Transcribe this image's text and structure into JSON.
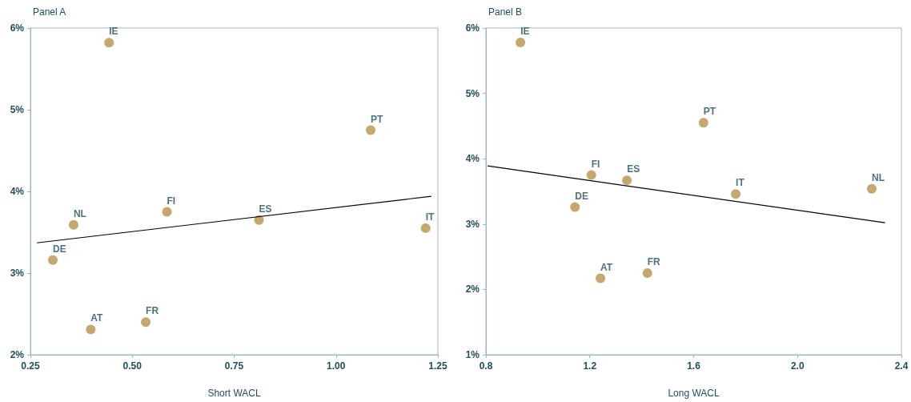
{
  "chart_data": [
    {
      "type": "scatter",
      "title": "Panel A",
      "xlabel": "Short WACL",
      "xlim": [
        0.25,
        1.25
      ],
      "xticks": [
        {
          "value": 0.25,
          "label": "0.25"
        },
        {
          "value": 0.5,
          "label": "0.50"
        },
        {
          "value": 0.75,
          "label": "0.75"
        },
        {
          "value": 1,
          "label": "1.00"
        },
        {
          "value": 1.25,
          "label": "1.25"
        }
      ],
      "ylim": [
        2,
        6
      ],
      "yticks": [
        {
          "value": 2,
          "label": "2%"
        },
        {
          "value": 3,
          "label": "3%"
        },
        {
          "value": 4,
          "label": "4%"
        },
        {
          "value": 5,
          "label": "5%"
        },
        {
          "value": 6,
          "label": "6%"
        }
      ],
      "grid": false,
      "series": [
        {
          "color": "#b8914a",
          "marker": "circle",
          "x": [
            0.443,
            1.085,
            0.356,
            0.585,
            0.811,
            1.22,
            0.305,
            0.398,
            0.533
          ],
          "values": [
            5.82,
            4.75,
            3.59,
            3.75,
            3.65,
            3.55,
            3.16,
            2.31,
            2.4
          ],
          "value_labels": [
            "IE",
            "PT",
            "NL",
            "FI",
            "ES",
            "IT",
            "DE",
            "AT",
            "FR"
          ]
        },
        {
          "type": "line",
          "color": "#000000",
          "marker": "none",
          "x": [
            0.266,
            1.234
          ],
          "values": [
            3.37,
            3.94
          ]
        }
      ]
    },
    {
      "type": "scatter",
      "title": "Panel B",
      "xlabel": "Long WACL",
      "xlim": [
        0.8,
        2.4
      ],
      "xticks": [
        0.8,
        1.2,
        1.6,
        {
          "value": 2,
          "label": "2.0"
        },
        2.4
      ],
      "ylim": [
        1,
        6
      ],
      "yticks": [
        {
          "value": 1,
          "label": "1%"
        },
        {
          "value": 2,
          "label": "2%"
        },
        {
          "value": 3,
          "label": "3%"
        },
        {
          "value": 4,
          "label": "4%"
        },
        {
          "value": 5,
          "label": "5%"
        },
        {
          "value": 6,
          "label": "6%"
        }
      ],
      "grid": false,
      "series": [
        {
          "color": "#b8914a",
          "marker": "circle",
          "x": [
            0.933,
            1.638,
            1.206,
            1.343,
            1.762,
            2.286,
            1.143,
            1.241,
            1.422
          ],
          "values": [
            5.78,
            4.55,
            3.75,
            3.67,
            3.46,
            3.54,
            3.26,
            2.17,
            2.25
          ],
          "value_labels": [
            "IE",
            "PT",
            "FI",
            "ES",
            "IT",
            "NL",
            "DE",
            "AT",
            "FR"
          ]
        },
        {
          "type": "line",
          "color": "#000000",
          "marker": "none",
          "x": [
            0.806,
            2.337
          ],
          "values": [
            3.89,
            3.02
          ]
        }
      ]
    }
  ]
}
